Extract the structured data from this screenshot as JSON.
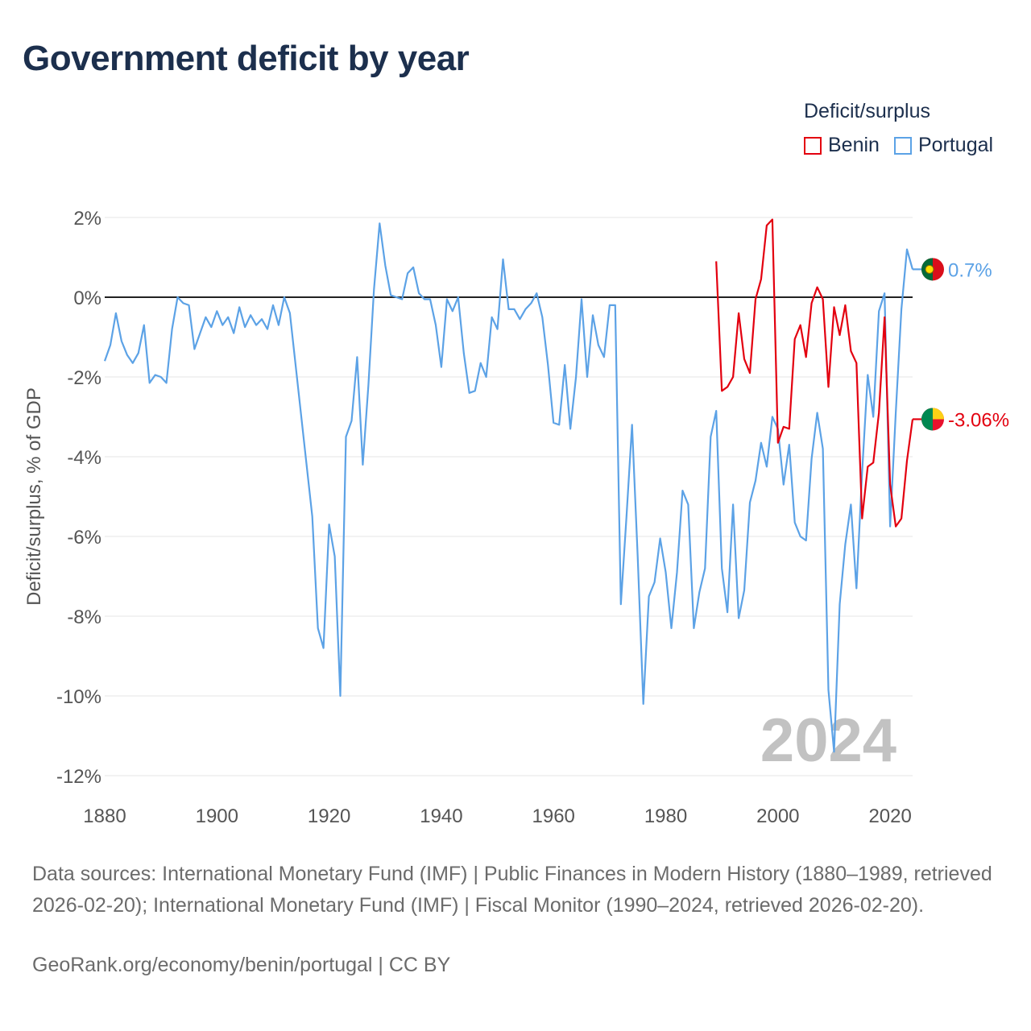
{
  "title": "Government deficit by year",
  "legend": {
    "title": "Deficit/surplus",
    "items": [
      {
        "label": "Benin",
        "color": "#e3000f"
      },
      {
        "label": "Portugal",
        "color": "#5ca2e6"
      }
    ]
  },
  "source_text": "Data sources: International Monetary Fund (IMF) | Public Finances in Modern History (1880–1989, retrieved 2026-02-20); International Monetary Fund (IMF) | Fiscal Monitor (1990–2024, retrieved 2026-02-20).",
  "credit_text": "GeoRank.org/economy/benin/portugal | CC BY",
  "chart_data": {
    "type": "line",
    "title": "Government deficit by year",
    "xlabel": "",
    "ylabel": "Deficit/surplus, % of GDP",
    "xlim": [
      1880,
      2024
    ],
    "ylim": [
      -12,
      2
    ],
    "x_ticks": [
      1880,
      1900,
      1920,
      1940,
      1960,
      1980,
      2000,
      2020
    ],
    "y_ticks": [
      2,
      0,
      -2,
      -4,
      -6,
      -8,
      -10,
      -12
    ],
    "y_tick_labels": [
      "2%",
      "0%",
      "-2%",
      "-4%",
      "-6%",
      "-8%",
      "-10%",
      "-12%"
    ],
    "year_watermark": "2024",
    "series": [
      {
        "name": "Portugal",
        "color": "#5ca2e6",
        "end_label": "0.7%",
        "gap": [
          1912,
          1917
        ],
        "points": [
          [
            1880,
            -1.6
          ],
          [
            1881,
            -1.2
          ],
          [
            1882,
            -0.4
          ],
          [
            1883,
            -1.1
          ],
          [
            1884,
            -1.45
          ],
          [
            1885,
            -1.65
          ],
          [
            1886,
            -1.4
          ],
          [
            1887,
            -0.7
          ],
          [
            1888,
            -2.15
          ],
          [
            1889,
            -1.95
          ],
          [
            1890,
            -2.0
          ],
          [
            1891,
            -2.15
          ],
          [
            1892,
            -0.8
          ],
          [
            1893,
            0.0
          ],
          [
            1894,
            -0.15
          ],
          [
            1895,
            -0.2
          ],
          [
            1896,
            -1.3
          ],
          [
            1897,
            -0.9
          ],
          [
            1898,
            -0.5
          ],
          [
            1899,
            -0.75
          ],
          [
            1900,
            -0.35
          ],
          [
            1901,
            -0.7
          ],
          [
            1902,
            -0.5
          ],
          [
            1903,
            -0.9
          ],
          [
            1904,
            -0.25
          ],
          [
            1905,
            -0.75
          ],
          [
            1906,
            -0.45
          ],
          [
            1907,
            -0.7
          ],
          [
            1908,
            -0.55
          ],
          [
            1909,
            -0.8
          ],
          [
            1910,
            -0.2
          ],
          [
            1911,
            -0.7
          ],
          [
            1912,
            0.0
          ],
          [
            1913,
            -0.4
          ],
          [
            1917,
            -5.5
          ],
          [
            1918,
            -8.3
          ],
          [
            1919,
            -8.8
          ],
          [
            1920,
            -5.7
          ],
          [
            1921,
            -6.5
          ],
          [
            1922,
            -10.0
          ],
          [
            1923,
            -3.5
          ],
          [
            1924,
            -3.1
          ],
          [
            1925,
            -1.5
          ],
          [
            1926,
            -4.2
          ],
          [
            1927,
            -2.2
          ],
          [
            1928,
            0.2
          ],
          [
            1929,
            1.85
          ],
          [
            1930,
            0.8
          ],
          [
            1931,
            0.05
          ],
          [
            1932,
            0.0
          ],
          [
            1933,
            -0.05
          ],
          [
            1934,
            0.6
          ],
          [
            1935,
            0.75
          ],
          [
            1936,
            0.1
          ],
          [
            1937,
            -0.05
          ],
          [
            1938,
            -0.05
          ],
          [
            1939,
            -0.7
          ],
          [
            1940,
            -1.75
          ],
          [
            1941,
            -0.05
          ],
          [
            1942,
            -0.35
          ],
          [
            1943,
            0.0
          ],
          [
            1944,
            -1.4
          ],
          [
            1945,
            -2.4
          ],
          [
            1946,
            -2.35
          ],
          [
            1947,
            -1.65
          ],
          [
            1948,
            -2.0
          ],
          [
            1949,
            -0.5
          ],
          [
            1950,
            -0.8
          ],
          [
            1951,
            0.95
          ],
          [
            1952,
            -0.3
          ],
          [
            1953,
            -0.3
          ],
          [
            1954,
            -0.55
          ],
          [
            1955,
            -0.3
          ],
          [
            1956,
            -0.15
          ],
          [
            1957,
            0.1
          ],
          [
            1958,
            -0.5
          ],
          [
            1959,
            -1.7
          ],
          [
            1960,
            -3.15
          ],
          [
            1961,
            -3.2
          ],
          [
            1962,
            -1.7
          ],
          [
            1963,
            -3.3
          ],
          [
            1964,
            -2.0
          ],
          [
            1965,
            -0.05
          ],
          [
            1966,
            -2.0
          ],
          [
            1967,
            -0.45
          ],
          [
            1968,
            -1.2
          ],
          [
            1969,
            -1.5
          ],
          [
            1970,
            -0.2
          ],
          [
            1971,
            -0.2
          ],
          [
            1972,
            -7.7
          ],
          [
            1973,
            -5.5
          ],
          [
            1974,
            -3.2
          ],
          [
            1975,
            -6.5
          ],
          [
            1976,
            -10.2
          ],
          [
            1977,
            -7.5
          ],
          [
            1978,
            -7.15
          ],
          [
            1979,
            -6.05
          ],
          [
            1980,
            -6.9
          ],
          [
            1981,
            -8.3
          ],
          [
            1982,
            -6.9
          ],
          [
            1983,
            -4.85
          ],
          [
            1984,
            -5.2
          ],
          [
            1985,
            -8.3
          ],
          [
            1986,
            -7.4
          ],
          [
            1987,
            -6.8
          ],
          [
            1988,
            -3.5
          ],
          [
            1989,
            -2.85
          ],
          [
            1990,
            -6.8
          ],
          [
            1991,
            -7.9
          ],
          [
            1992,
            -5.2
          ],
          [
            1993,
            -8.05
          ],
          [
            1994,
            -7.35
          ],
          [
            1995,
            -5.15
          ],
          [
            1996,
            -4.6
          ],
          [
            1997,
            -3.65
          ],
          [
            1998,
            -4.25
          ],
          [
            1999,
            -3.0
          ],
          [
            2000,
            -3.3
          ],
          [
            2001,
            -4.7
          ],
          [
            2002,
            -3.7
          ],
          [
            2003,
            -5.65
          ],
          [
            2004,
            -6.0
          ],
          [
            2005,
            -6.1
          ],
          [
            2006,
            -4.05
          ],
          [
            2007,
            -2.9
          ],
          [
            2008,
            -3.8
          ],
          [
            2009,
            -9.85
          ],
          [
            2010,
            -11.4
          ],
          [
            2011,
            -7.7
          ],
          [
            2012,
            -6.2
          ],
          [
            2013,
            -5.2
          ],
          [
            2014,
            -7.3
          ],
          [
            2015,
            -4.4
          ],
          [
            2016,
            -1.95
          ],
          [
            2017,
            -3.0
          ],
          [
            2018,
            -0.35
          ],
          [
            2019,
            0.1
          ],
          [
            2020,
            -5.75
          ],
          [
            2021,
            -2.9
          ],
          [
            2022,
            -0.3
          ],
          [
            2023,
            1.2
          ],
          [
            2024,
            0.7
          ]
        ]
      },
      {
        "name": "Benin",
        "color": "#e3000f",
        "end_label": "-3.06%",
        "points": [
          [
            1989,
            0.9
          ],
          [
            1990,
            -2.35
          ],
          [
            1991,
            -2.25
          ],
          [
            1992,
            -2.0
          ],
          [
            1993,
            -0.4
          ],
          [
            1994,
            -1.55
          ],
          [
            1995,
            -1.9
          ],
          [
            1996,
            -0.05
          ],
          [
            1997,
            0.45
          ],
          [
            1998,
            1.8
          ],
          [
            1999,
            1.95
          ],
          [
            2000,
            -3.65
          ],
          [
            2001,
            -3.25
          ],
          [
            2002,
            -3.3
          ],
          [
            2003,
            -1.05
          ],
          [
            2004,
            -0.7
          ],
          [
            2005,
            -1.5
          ],
          [
            2006,
            -0.15
          ],
          [
            2007,
            0.25
          ],
          [
            2008,
            -0.05
          ],
          [
            2009,
            -2.25
          ],
          [
            2010,
            -0.25
          ],
          [
            2011,
            -0.95
          ],
          [
            2012,
            -0.2
          ],
          [
            2013,
            -1.35
          ],
          [
            2014,
            -1.65
          ],
          [
            2015,
            -5.55
          ],
          [
            2016,
            -4.25
          ],
          [
            2017,
            -4.15
          ],
          [
            2018,
            -2.9
          ],
          [
            2019,
            -0.5
          ],
          [
            2020,
            -4.7
          ],
          [
            2021,
            -5.75
          ],
          [
            2022,
            -5.55
          ],
          [
            2023,
            -4.1
          ],
          [
            2024,
            -3.06
          ]
        ]
      }
    ]
  }
}
